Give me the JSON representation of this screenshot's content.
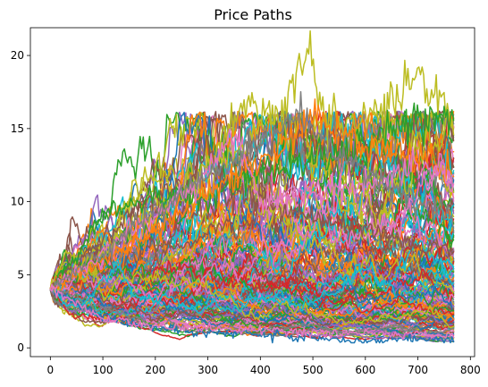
{
  "chart_data": {
    "type": "line",
    "title": "Price Paths",
    "xlabel": "",
    "ylabel": "",
    "xlim": [
      -38,
      808
    ],
    "ylim": [
      -0.6,
      21.9
    ],
    "x_ticks": [
      0,
      100,
      200,
      300,
      400,
      500,
      600,
      700,
      800
    ],
    "y_ticks": [
      0,
      5,
      10,
      15,
      20
    ],
    "grid": false,
    "legend": "none",
    "n_steps": 770,
    "n_paths": 200,
    "start_value": 4,
    "end_value_range": [
      0.5,
      16
    ],
    "max_value": 20.8,
    "colors": [
      "#1f77b4",
      "#ff7f0e",
      "#2ca02c",
      "#d62728",
      "#9467bd",
      "#8c564b",
      "#e377c2",
      "#7f7f7f",
      "#bcbd22",
      "#17becf"
    ],
    "series": [
      {
        "color": "#1f77b4",
        "values": [
          [
            0,
            4.0
          ],
          [
            100,
            2.2
          ],
          [
            200,
            1.3
          ],
          [
            300,
            1.0
          ],
          [
            400,
            0.9
          ],
          [
            500,
            0.7
          ],
          [
            600,
            0.5
          ],
          [
            700,
            0.6
          ],
          [
            770,
            0.5
          ]
        ]
      },
      {
        "color": "#bcbd22",
        "values": [
          [
            0,
            4.0
          ],
          [
            100,
            7.0
          ],
          [
            200,
            9.5
          ],
          [
            300,
            12.5
          ],
          [
            360,
            16.5
          ],
          [
            430,
            15.5
          ],
          [
            490,
            20.8
          ],
          [
            520,
            16.0
          ],
          [
            600,
            15.0
          ],
          [
            700,
            18.5
          ],
          [
            770,
            16.0
          ]
        ]
      },
      {
        "color": "#8c564b",
        "values": [
          [
            0,
            4.0
          ],
          [
            100,
            7.5
          ],
          [
            200,
            10.5
          ],
          [
            260,
            11.0
          ],
          [
            300,
            14.2
          ],
          [
            330,
            11.0
          ],
          [
            400,
            10.0
          ],
          [
            500,
            9.0
          ],
          [
            600,
            8.0
          ],
          [
            700,
            7.0
          ],
          [
            770,
            6.5
          ]
        ]
      },
      {
        "color": "#2ca02c",
        "values": [
          [
            0,
            4.0
          ],
          [
            100,
            9.0
          ],
          [
            200,
            10.5
          ],
          [
            300,
            10.0
          ],
          [
            400,
            12.0
          ],
          [
            500,
            13.0
          ],
          [
            600,
            14.0
          ],
          [
            700,
            15.5
          ],
          [
            770,
            15.8
          ]
        ]
      },
      {
        "color": "#ff7f0e",
        "values": [
          [
            0,
            4.0
          ],
          [
            100,
            6.0
          ],
          [
            200,
            8.0
          ],
          [
            300,
            10.5
          ],
          [
            400,
            13.0
          ],
          [
            500,
            15.5
          ],
          [
            600,
            14.0
          ],
          [
            700,
            13.0
          ],
          [
            770,
            12.0
          ]
        ]
      },
      {
        "color": "#e377c2",
        "values": [
          [
            0,
            4.0
          ],
          [
            100,
            6.5
          ],
          [
            200,
            9.0
          ],
          [
            300,
            12.0
          ],
          [
            350,
            14.5
          ],
          [
            400,
            10.0
          ],
          [
            500,
            11.0
          ],
          [
            600,
            11.0
          ],
          [
            700,
            12.5
          ],
          [
            770,
            11.5
          ]
        ]
      },
      {
        "color": "#7f7f7f",
        "values": [
          [
            0,
            4.0
          ],
          [
            100,
            6.5
          ],
          [
            200,
            9.5
          ],
          [
            300,
            12.0
          ],
          [
            400,
            14.0
          ],
          [
            470,
            16.0
          ],
          [
            550,
            13.0
          ],
          [
            600,
            12.0
          ],
          [
            700,
            10.0
          ],
          [
            770,
            9.0
          ]
        ]
      },
      {
        "color": "#e377c2",
        "values": [
          [
            0,
            4.0
          ],
          [
            50,
            3.0
          ],
          [
            100,
            2.0
          ],
          [
            200,
            1.5
          ],
          [
            300,
            1.3
          ],
          [
            400,
            1.2
          ],
          [
            500,
            1.0
          ],
          [
            600,
            1.0
          ],
          [
            700,
            0.9
          ],
          [
            770,
            0.8
          ]
        ]
      }
    ]
  }
}
